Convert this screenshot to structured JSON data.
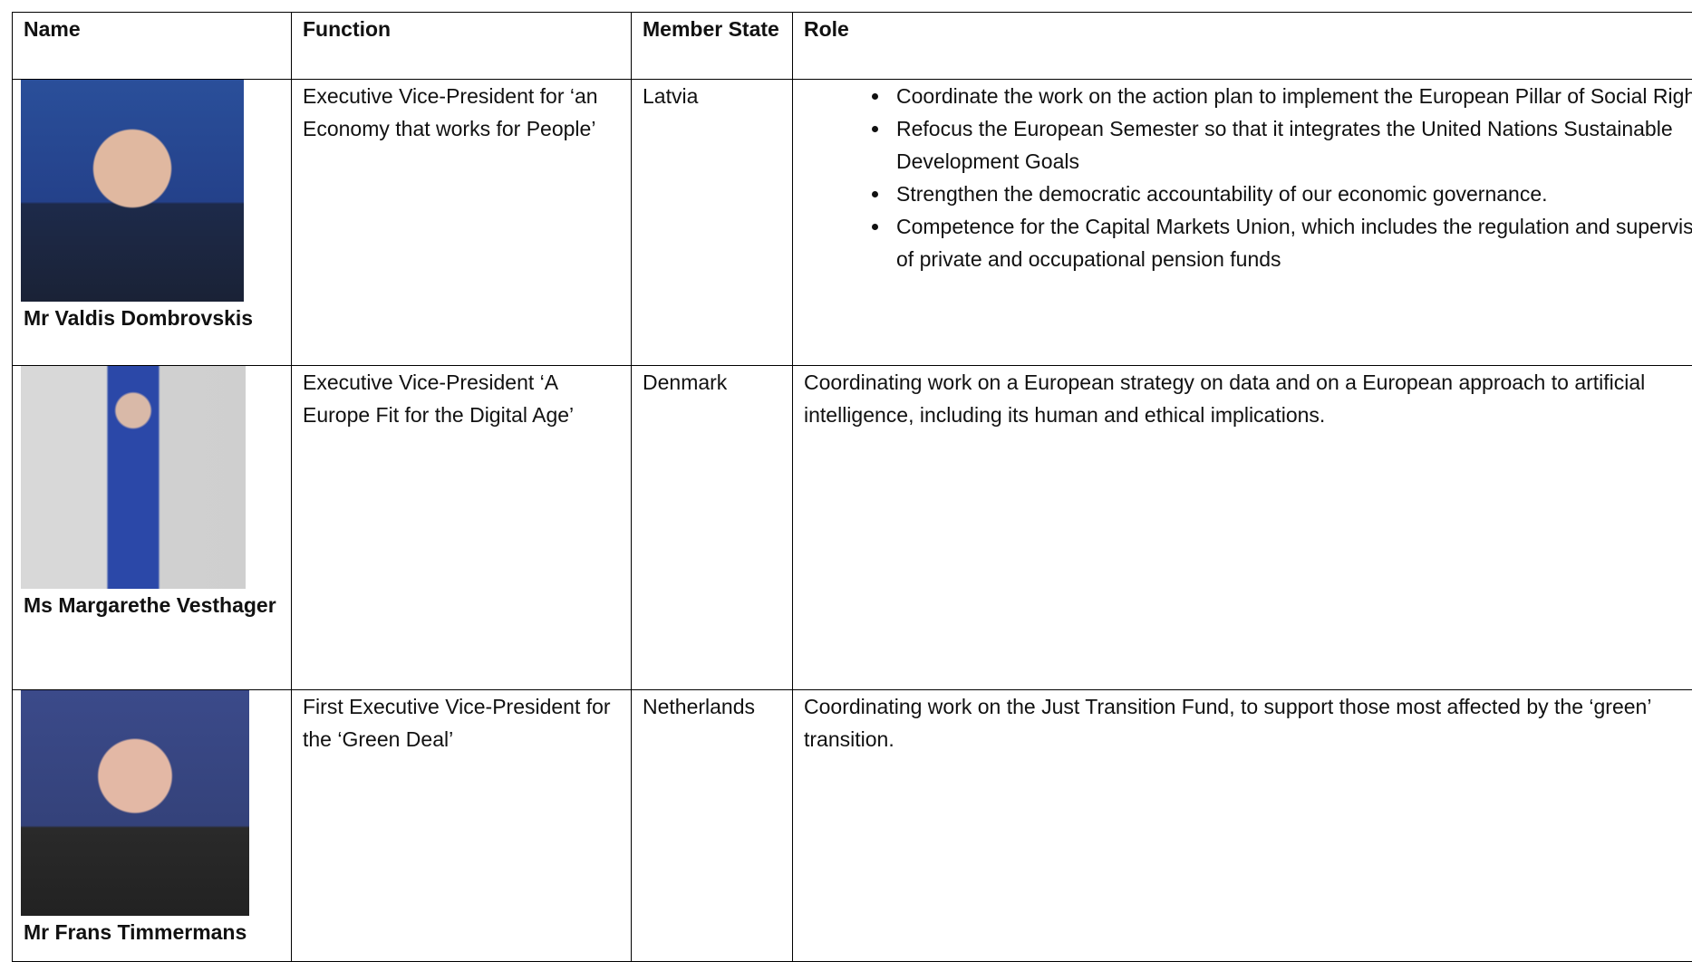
{
  "table": {
    "header": [
      "Name",
      "Function",
      "Member State",
      "Role"
    ],
    "rows": [
      {
        "name": "Mr Valdis Dombrovskis",
        "function": "Executive Vice-President for ‘an Economy that works for People’",
        "member_state": "Latvia",
        "role": [
          "Coordinate the work on the action plan to implement the European Pillar of Social Rights.",
          "Refocus the European Semester so that it integrates the United Nations Sustainable Development Goals",
          "Strengthen the democratic accountability of our economic governance.",
          "Competence for the Capital Markets Union, which includes the regulation and supervision of private and occupational pension funds"
        ]
      },
      {
        "name": "Ms Margarethe Vesthager",
        "function": "Executive Vice-President ‘A Europe Fit for the Digital Age’",
        "member_state": "Denmark",
        "role": "Coordinating work on a European strategy on data and on a European approach to artificial intelligence, including its human and ethical implications."
      },
      {
        "name": "Mr Frans Timmermans",
        "function": "First Executive Vice-President for the ‘Green Deal’",
        "member_state": "Netherlands",
        "role": "Coordinating work on the Just Transition Fund, to support those most affected by the ‘green’ transition."
      }
    ]
  }
}
